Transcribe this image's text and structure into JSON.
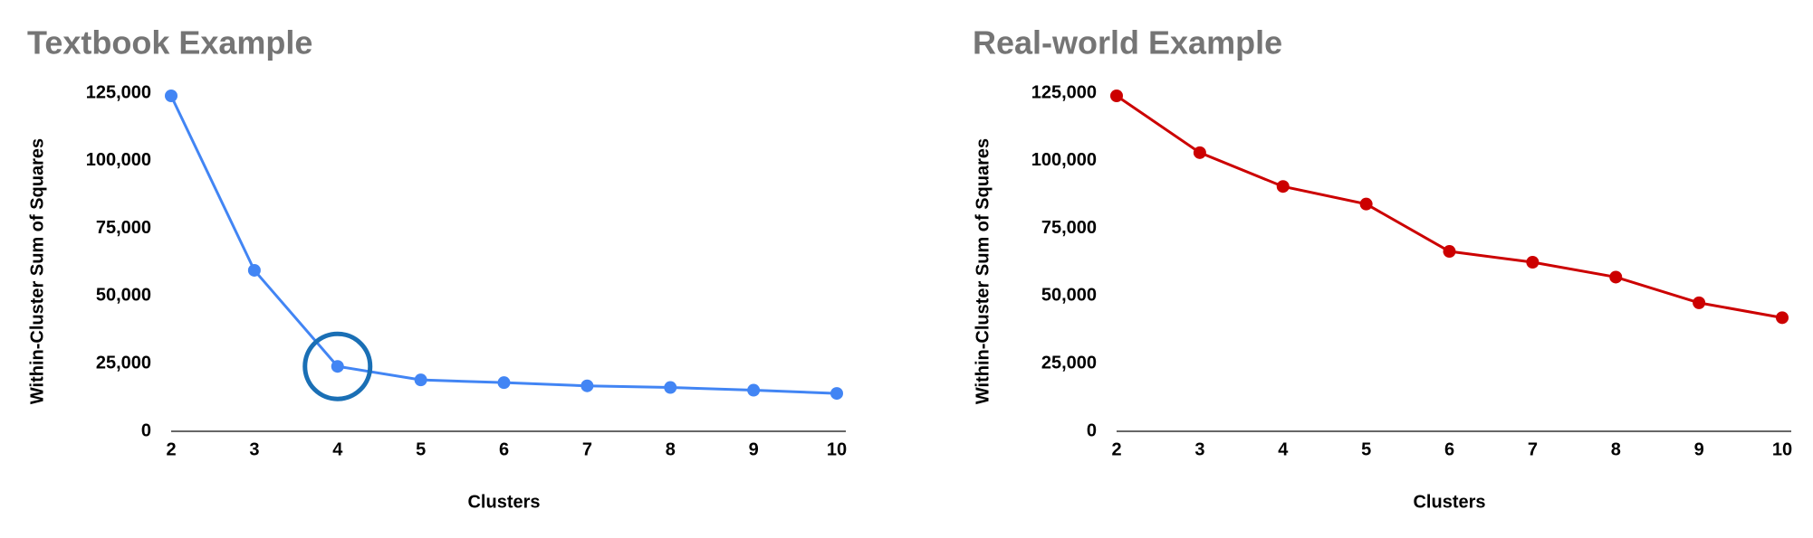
{
  "chart_data": [
    {
      "type": "line",
      "title": "Textbook Example",
      "xlabel": "Clusters",
      "ylabel": "Within-Cluster Sum of Squares",
      "x": [
        2,
        3,
        4,
        5,
        6,
        7,
        8,
        9,
        10
      ],
      "series": [
        {
          "color": "#4285f4",
          "values": [
            124000,
            59500,
            24000,
            19000,
            18000,
            16800,
            16200,
            15200,
            14000
          ]
        }
      ],
      "xlim": [
        2,
        10
      ],
      "xticks": [
        2,
        3,
        4,
        5,
        6,
        7,
        8,
        9,
        10
      ],
      "ylim": [
        0,
        125000
      ],
      "yticks": [
        0,
        {
          "value": 25000,
          "label": "25,000"
        },
        {
          "value": 50000,
          "label": "50,000"
        },
        {
          "value": 75000,
          "label": "75,000"
        },
        {
          "value": 100000,
          "label": "100,000"
        },
        {
          "value": 125000,
          "label": "125,000"
        }
      ]
    },
    {
      "type": "line",
      "title": "Real-world Example",
      "xlabel": "Clusters",
      "ylabel": "Within-Cluster Sum of Squares",
      "x": [
        2,
        3,
        4,
        5,
        6,
        7,
        8,
        9,
        10
      ],
      "series": [
        {
          "color": "#cc0000",
          "values": [
            124000,
            103000,
            90500,
            84000,
            66500,
            62500,
            57000,
            47500,
            42000
          ]
        }
      ],
      "xlim": [
        2,
        10
      ],
      "xticks": [
        2,
        3,
        4,
        5,
        6,
        7,
        8,
        9,
        10
      ],
      "ylim": [
        0,
        125000
      ],
      "yticks": [
        0,
        {
          "value": 25000,
          "label": "25,000"
        },
        {
          "value": 50000,
          "label": "50,000"
        },
        {
          "value": 75000,
          "label": "75,000"
        },
        {
          "value": 100000,
          "label": "100,000"
        },
        {
          "value": 125000,
          "label": "125,000"
        }
      ]
    }
  ]
}
